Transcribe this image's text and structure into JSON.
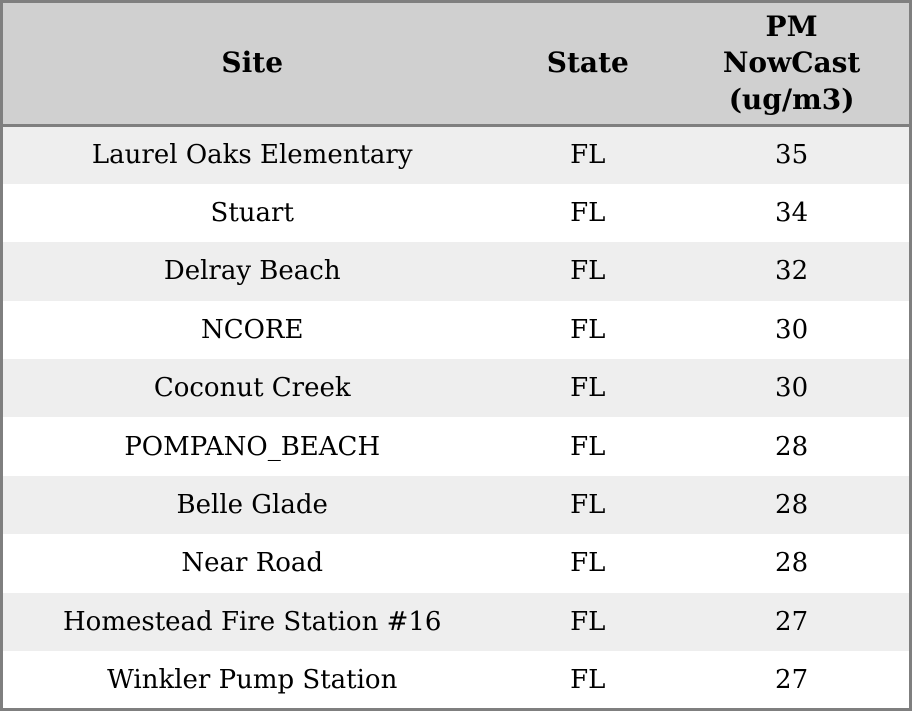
{
  "chart_data": {
    "type": "table",
    "columns": [
      "Site",
      "State",
      "PM NowCast (ug/m3)"
    ],
    "rows": [
      [
        "Laurel Oaks Elementary",
        "FL",
        "35"
      ],
      [
        "Stuart",
        "FL",
        "34"
      ],
      [
        "Delray Beach",
        "FL",
        "32"
      ],
      [
        "NCORE",
        "FL",
        "30"
      ],
      [
        "Coconut Creek",
        "FL",
        "30"
      ],
      [
        "POMPANO_BEACH",
        "FL",
        "28"
      ],
      [
        "Belle Glade",
        "FL",
        "28"
      ],
      [
        "Near Road",
        "FL",
        "28"
      ],
      [
        "Homestead Fire Station #16",
        "FL",
        "27"
      ],
      [
        "Winkler Pump Station",
        "FL",
        "27"
      ]
    ]
  },
  "colors": {
    "header_bg": "#d0d0d0",
    "row_alt_bg": "#eeeeee",
    "row_bg": "#ffffff",
    "border": "#7f7f7f",
    "text": "#000000"
  }
}
